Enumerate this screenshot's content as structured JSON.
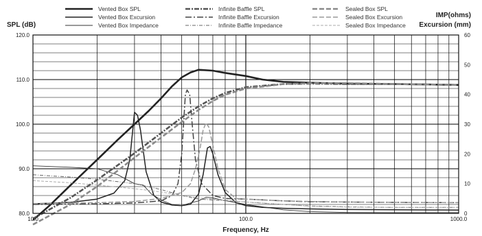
{
  "chart_data": {
    "type": "line",
    "x_scale": "log",
    "xlabel": "Frequency, Hz",
    "ylabel_left": "SPL (dB)",
    "ylabel_right_1": "IMP(ohms)",
    "ylabel_right_2": "Excursion (mm)",
    "xlim": [
      10,
      1000
    ],
    "ylim_left": [
      80,
      120
    ],
    "ylim_right": [
      0,
      60
    ],
    "x_tick_labels": [
      "10.0",
      "100.0",
      "1000.0"
    ],
    "y_left_tick_labels": [
      "80.0",
      "90.0",
      "100.0",
      "110.0",
      "120.0"
    ],
    "y_right_tick_labels": [
      "0",
      "10",
      "20",
      "30",
      "40",
      "50",
      "60"
    ],
    "grid": true,
    "legend_position": "top",
    "series": [
      {
        "name": "Vented Box SPL",
        "axis": "left",
        "color": "#222222",
        "width": 2.6,
        "dash": "",
        "points": [
          [
            10,
            78.5
          ],
          [
            12,
            81.8
          ],
          [
            15,
            86.3
          ],
          [
            20,
            92.0
          ],
          [
            25,
            96.5
          ],
          [
            30,
            100.0
          ],
          [
            35,
            103.0
          ],
          [
            40,
            105.8
          ],
          [
            45,
            108.5
          ],
          [
            50,
            110.5
          ],
          [
            55,
            111.6
          ],
          [
            60,
            112.2
          ],
          [
            70,
            112.0
          ],
          [
            80,
            111.5
          ],
          [
            100,
            110.8
          ],
          [
            120,
            110.0
          ],
          [
            150,
            109.5
          ],
          [
            200,
            109.3
          ],
          [
            300,
            109.1
          ],
          [
            500,
            109.0
          ],
          [
            1000,
            108.8
          ]
        ]
      },
      {
        "name": "Vented Box Excursion",
        "axis": "right",
        "color": "#222222",
        "width": 1.5,
        "dash": "",
        "points": [
          [
            10,
            3.2
          ],
          [
            15,
            3.7
          ],
          [
            20,
            4.8
          ],
          [
            24,
            6.8
          ],
          [
            27,
            11
          ],
          [
            28.5,
            18
          ],
          [
            30,
            34
          ],
          [
            31,
            33
          ],
          [
            32,
            28
          ],
          [
            34,
            14
          ],
          [
            37,
            6
          ],
          [
            40,
            3.8
          ],
          [
            45,
            2.8
          ],
          [
            50,
            2.6
          ],
          [
            55,
            3.1
          ],
          [
            60,
            6.5
          ],
          [
            63,
            13
          ],
          [
            66,
            22
          ],
          [
            68,
            22.5
          ],
          [
            70,
            20
          ],
          [
            74,
            13
          ],
          [
            80,
            7
          ],
          [
            90,
            3.6
          ],
          [
            100,
            2.6
          ],
          [
            120,
            2.0
          ],
          [
            150,
            1.7
          ],
          [
            200,
            1.5
          ],
          [
            300,
            1.3
          ],
          [
            500,
            1.2
          ],
          [
            1000,
            1.1
          ]
        ]
      },
      {
        "name": "Vented Box Impedance",
        "axis": "right",
        "color": "#333333",
        "width": 0.9,
        "dash": "",
        "points": [
          [
            10,
            16
          ],
          [
            15,
            15.5
          ],
          [
            20,
            15
          ],
          [
            25,
            13
          ],
          [
            30,
            10
          ],
          [
            33,
            9.5
          ],
          [
            36,
            6.5
          ],
          [
            40,
            4.5
          ],
          [
            45,
            3
          ],
          [
            50,
            2.6
          ],
          [
            55,
            3.5
          ],
          [
            60,
            4.2
          ],
          [
            65,
            5.4
          ],
          [
            70,
            5.2
          ],
          [
            80,
            4.3
          ],
          [
            100,
            3.0
          ],
          [
            150,
            1.2
          ],
          [
            200,
            0.6
          ],
          [
            300,
            0.3
          ],
          [
            500,
            0.25
          ],
          [
            1000,
            0.25
          ]
        ]
      },
      {
        "name": "Infinite Baffle SPL",
        "axis": "left",
        "color": "#555555",
        "width": 2.6,
        "dash": "7,2,2,2",
        "points": [
          [
            10,
            78.8
          ],
          [
            15,
            83.5
          ],
          [
            20,
            87.5
          ],
          [
            30,
            93.5
          ],
          [
            40,
            98.0
          ],
          [
            50,
            101.5
          ],
          [
            60,
            104.0
          ],
          [
            70,
            105.8
          ],
          [
            80,
            107.0
          ],
          [
            100,
            108.3
          ],
          [
            150,
            109.0
          ],
          [
            200,
            109.1
          ],
          [
            300,
            109.0
          ],
          [
            500,
            109.0
          ],
          [
            1000,
            108.8
          ]
        ]
      },
      {
        "name": "Infinite Baffle Excursion",
        "axis": "right",
        "color": "#444444",
        "width": 1.5,
        "dash": "9,3,2,3",
        "points": [
          [
            10,
            3
          ],
          [
            20,
            3.2
          ],
          [
            30,
            3.5
          ],
          [
            40,
            4.2
          ],
          [
            45,
            6
          ],
          [
            48,
            10
          ],
          [
            50,
            20
          ],
          [
            52,
            40
          ],
          [
            53,
            41.5
          ],
          [
            54.5,
            40
          ],
          [
            56,
            30
          ],
          [
            58,
            18
          ],
          [
            62,
            10
          ],
          [
            70,
            6
          ],
          [
            80,
            5
          ],
          [
            100,
            4.8
          ],
          [
            150,
            4.2
          ],
          [
            200,
            3.9
          ],
          [
            300,
            3.8
          ],
          [
            500,
            3.7
          ],
          [
            1000,
            3.6
          ]
        ]
      },
      {
        "name": "Infinite Baffle Impedance",
        "axis": "right",
        "color": "#666666",
        "width": 1,
        "dash": "5,2,1,2",
        "points": [
          [
            10,
            13
          ],
          [
            15,
            12.2
          ],
          [
            20,
            11.5
          ],
          [
            30,
            10
          ],
          [
            40,
            8
          ],
          [
            50,
            6
          ],
          [
            60,
            4.8
          ],
          [
            70,
            4.5
          ],
          [
            80,
            4.3
          ],
          [
            100,
            3.8
          ],
          [
            150,
            3
          ],
          [
            200,
            2.5
          ],
          [
            300,
            2.2
          ],
          [
            500,
            2.0
          ],
          [
            1000,
            2.0
          ]
        ]
      },
      {
        "name": "Sealed Box SPL",
        "axis": "left",
        "color": "#8a8a8a",
        "width": 2.6,
        "dash": "7,3",
        "points": [
          [
            10,
            77.5
          ],
          [
            15,
            82.0
          ],
          [
            20,
            86.0
          ],
          [
            30,
            92.5
          ],
          [
            40,
            97.0
          ],
          [
            50,
            100.5
          ],
          [
            60,
            103.2
          ],
          [
            70,
            105.2
          ],
          [
            80,
            106.6
          ],
          [
            100,
            108.0
          ],
          [
            150,
            109.0
          ],
          [
            200,
            109.2
          ],
          [
            300,
            109.2
          ],
          [
            500,
            109.0
          ],
          [
            1000,
            108.8
          ]
        ]
      },
      {
        "name": "Sealed Box Excursion",
        "axis": "right",
        "color": "#999999",
        "width": 1.5,
        "dash": "7,3",
        "points": [
          [
            10,
            3.3
          ],
          [
            20,
            3.6
          ],
          [
            30,
            4
          ],
          [
            40,
            5
          ],
          [
            50,
            7
          ],
          [
            55,
            10
          ],
          [
            58,
            15
          ],
          [
            61,
            22
          ],
          [
            63,
            28
          ],
          [
            65,
            30.5
          ],
          [
            67,
            29
          ],
          [
            70,
            23
          ],
          [
            74,
            15
          ],
          [
            80,
            8
          ],
          [
            90,
            5
          ],
          [
            100,
            4.8
          ],
          [
            150,
            4.2
          ],
          [
            200,
            4.0
          ],
          [
            300,
            3.8
          ],
          [
            500,
            3.7
          ],
          [
            1000,
            3.6
          ]
        ]
      },
      {
        "name": "Sealed Box Impedance",
        "axis": "right",
        "color": "#aaaaaa",
        "width": 1,
        "dash": "4,2",
        "points": [
          [
            10,
            11
          ],
          [
            15,
            10.3
          ],
          [
            20,
            9.5
          ],
          [
            30,
            8.3
          ],
          [
            40,
            7.2
          ],
          [
            50,
            6
          ],
          [
            60,
            5.2
          ],
          [
            70,
            4.8
          ],
          [
            80,
            4.4
          ],
          [
            100,
            3.8
          ],
          [
            150,
            3
          ],
          [
            200,
            2.4
          ],
          [
            300,
            2.1
          ],
          [
            500,
            2.0
          ],
          [
            1000,
            2.0
          ]
        ]
      }
    ]
  }
}
